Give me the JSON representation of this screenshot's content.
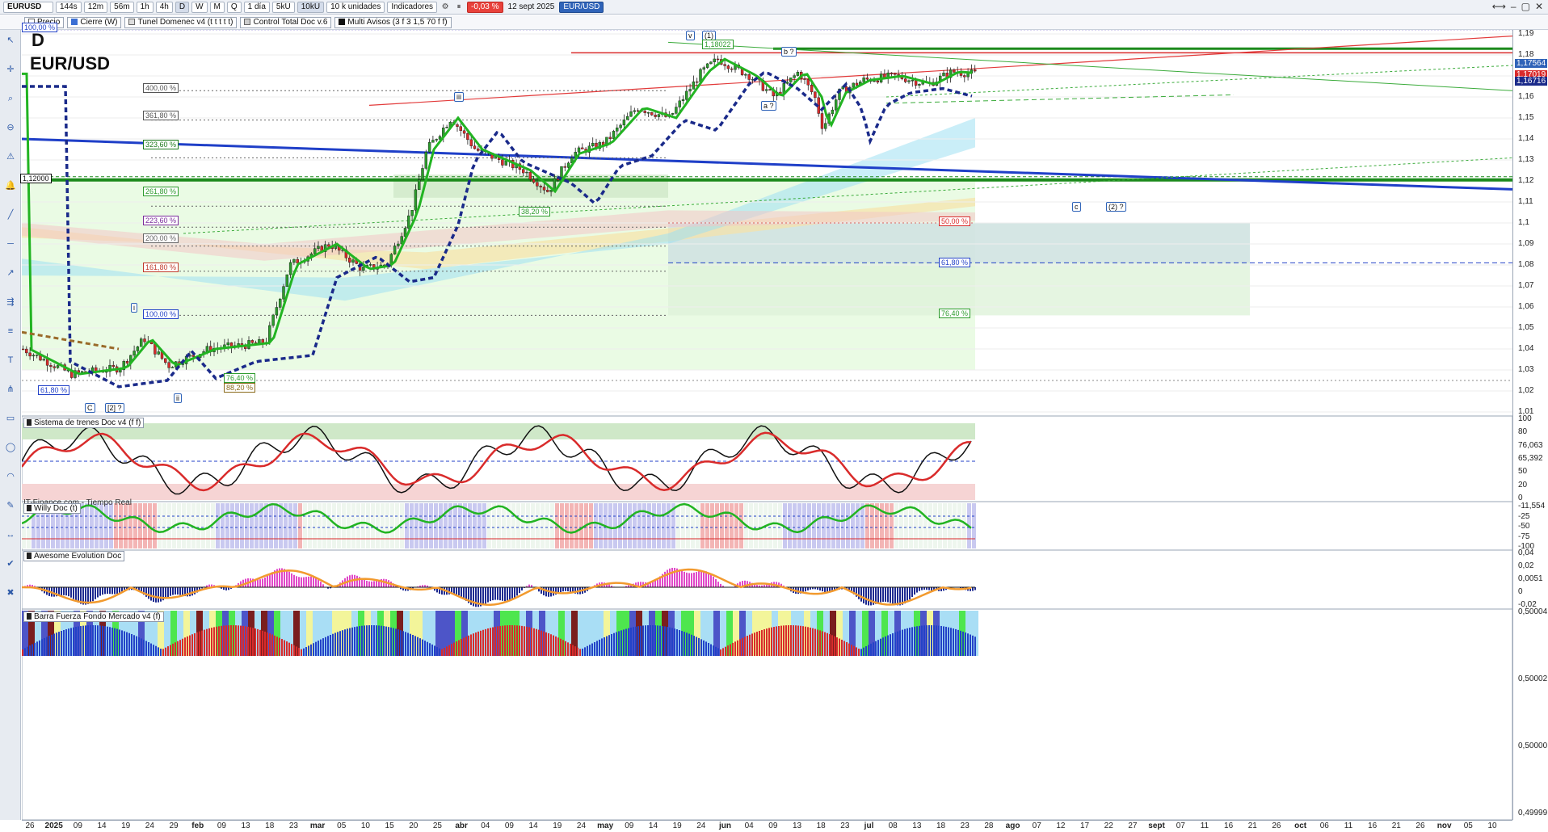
{
  "toolbar": {
    "symbol": "EURUSD",
    "timeframes": [
      "144s",
      "12m",
      "56m",
      "1h",
      "4h",
      "D",
      "W",
      "M",
      "Q"
    ],
    "active_timeframe": "D",
    "period": "1 día",
    "volume_labels": [
      "5kU",
      "10kU"
    ],
    "units": "10 k unidades",
    "indicators_label": "Indicadores",
    "change": "-0,03 %",
    "date": "12 sept 2025",
    "pair": "EUR/USD"
  },
  "indicator_bar": {
    "chips": [
      {
        "label": "Precio",
        "color": "#ffffff"
      },
      {
        "label": "Cierre (W)",
        "color": "#3b6fd4"
      },
      {
        "label": "Tunel Domenec v4 (t t t t t)",
        "color": "#e0e0e0"
      },
      {
        "label": "Control Total Doc v.6",
        "color": "#cccccc"
      },
      {
        "label": "Multi Avisos (3 f 3 1,5 70 f f)",
        "color": "#111111"
      }
    ]
  },
  "main": {
    "timeframe_letter": "D",
    "title": "EUR/USD",
    "watermark": "IT-Finance.com - Tiempo Real",
    "fib_labels": [
      "400,00 %",
      "361,80 %",
      "323,60 %",
      "261,80 %",
      "223,60 %",
      "200,00 %",
      "161,80 %",
      "100,00 %",
      "61,80 %",
      "76,40 %",
      "88,20 %",
      "50,00 %",
      "61,80 %",
      "76,40 %",
      "100,00 %",
      "38,20 %"
    ],
    "wave_labels": [
      "v",
      "(1)",
      "b ?",
      "a ?",
      "iii",
      "i",
      "ii",
      "C",
      "[2] ?",
      "c",
      "(2) ?"
    ],
    "level_tag": "1,12000",
    "wave_value": "1,18022"
  },
  "panes": [
    {
      "title": "Sistema de trenes Doc v4 (f f)"
    },
    {
      "title": "Willy Doc (t)"
    },
    {
      "title": "Awesome Evolution Doc"
    },
    {
      "title": "Barra Fuerza Fondo Mercado v4 (f)"
    }
  ],
  "price_axis": {
    "labels": [
      "1,19",
      "1,18",
      "1,17",
      "1,16",
      "1,15",
      "1,14",
      "1,13",
      "1,12",
      "1,11",
      "1,1",
      "1,09",
      "1,08",
      "1,07",
      "1,06",
      "1,05",
      "1,04",
      "1,03",
      "1,02",
      "1,01"
    ],
    "tags": [
      {
        "text": "1,17564",
        "color": "#2f63b8"
      },
      {
        "text": "1,17019",
        "color": "#d92b2b"
      },
      {
        "text": "1,16716",
        "color": "#1a2a8a"
      }
    ]
  },
  "osc_axis": {
    "trenes": [
      "100",
      "80",
      "76,063",
      "65,392",
      "50",
      "20",
      "0"
    ],
    "willy": [
      "-11,554",
      "-25",
      "-50",
      "-75",
      "-100"
    ],
    "awesome": [
      "0,04",
      "0,02",
      "0,0051",
      "0",
      "-0,02"
    ],
    "barra": [
      "0,50004",
      "0,50002",
      "0,50000",
      "0,49999"
    ]
  },
  "date_axis": {
    "labels": [
      "26",
      "2025",
      "09",
      "14",
      "19",
      "24",
      "29",
      "feb",
      "09",
      "13",
      "18",
      "23",
      "mar",
      "05",
      "10",
      "15",
      "20",
      "25",
      "abr",
      "04",
      "09",
      "14",
      "19",
      "24",
      "may",
      "09",
      "14",
      "19",
      "24",
      "jun",
      "04",
      "09",
      "13",
      "18",
      "23",
      "jul",
      "08",
      "13",
      "18",
      "23",
      "28",
      "ago",
      "07",
      "12",
      "17",
      "22",
      "27",
      "sept",
      "07",
      "11",
      "16",
      "21",
      "26",
      "oct",
      "06",
      "11",
      "16",
      "21",
      "26",
      "nov",
      "05",
      "10"
    ]
  },
  "colors": {
    "bull": "#2c9b2c",
    "bear": "#d92b2b",
    "trend_blue": "#1f3fc8",
    "support_green": "#1c8a1c"
  },
  "left_tools": [
    "pointer-icon",
    "crosshair-icon",
    "zoom-icon",
    "zoom-out-icon",
    "alert-icon",
    "bell-icon",
    "line-icon",
    "hline-icon",
    "ray-icon",
    "channel-icon",
    "fib-icon",
    "text-icon",
    "pitchfork-icon",
    "rectangle-icon",
    "ellipse-icon",
    "arc-icon",
    "brush-icon",
    "measure-icon",
    "check-icon",
    "delete-icon"
  ]
}
